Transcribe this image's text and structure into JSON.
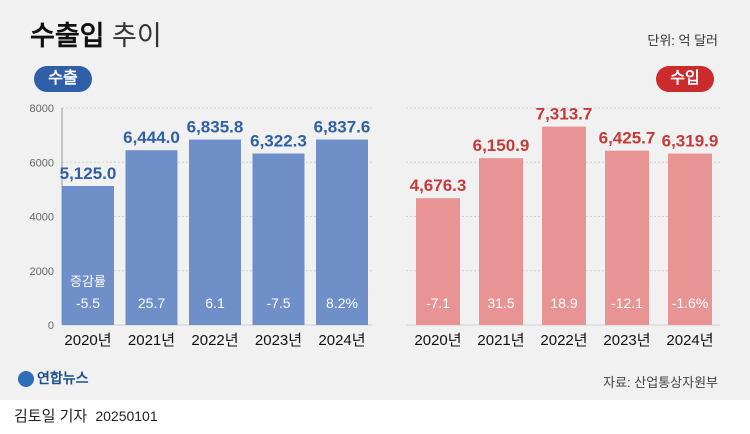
{
  "header": {
    "title_bold": "수출입",
    "title_light": "추이",
    "unit": "단위: 억 달러"
  },
  "labels": {
    "export": "수출",
    "import": "수입",
    "change_rate": "증감률"
  },
  "footer": {
    "logo_text": "연합뉴스",
    "source": "자료: 산업통상자원부",
    "byline": "김토일 기자",
    "date": "20250101"
  },
  "colors": {
    "export_bar": "#6f8fc9",
    "export_label": "#2f5fa7",
    "import_bar": "#e89494",
    "import_label": "#c53a3a"
  },
  "chart_data": [
    {
      "type": "bar",
      "name": "수출",
      "categories": [
        "2020년",
        "2021년",
        "2022년",
        "2023년",
        "2024년"
      ],
      "values": [
        5125.0,
        6444.0,
        6835.8,
        6322.3,
        6837.6
      ],
      "value_labels": [
        "5,125.0",
        "6,444.0",
        "6,835.8",
        "6,322.3",
        "6,837.6"
      ],
      "change_labels": [
        "-5.5",
        "25.7",
        "6.1",
        "-7.5",
        "8.2%"
      ],
      "ylim": [
        0,
        8000
      ],
      "yticks": [
        "0",
        "2000",
        "4000",
        "6000",
        "8000"
      ]
    },
    {
      "type": "bar",
      "name": "수입",
      "categories": [
        "2020년",
        "2021년",
        "2022년",
        "2023년",
        "2024년"
      ],
      "values": [
        4676.3,
        6150.9,
        7313.7,
        6425.7,
        6319.9
      ],
      "value_labels": [
        "4,676.3",
        "6,150.9",
        "7,313.7",
        "6,425.7",
        "6,319.9"
      ],
      "change_labels": [
        "-7.1",
        "31.5",
        "18.9",
        "-12.1",
        "-1.6%"
      ],
      "ylim": [
        0,
        8000
      ]
    }
  ]
}
